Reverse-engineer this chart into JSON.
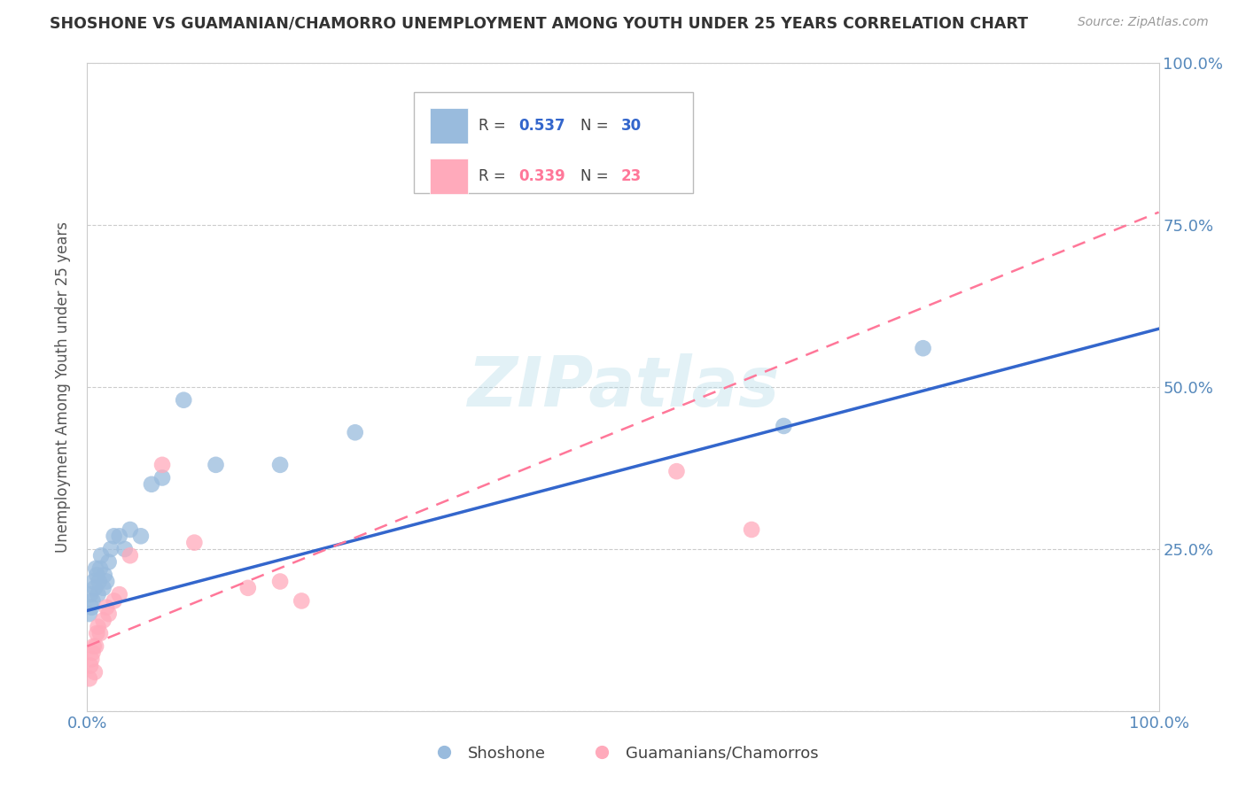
{
  "title": "SHOSHONE VS GUAMANIAN/CHAMORRO UNEMPLOYMENT AMONG YOUTH UNDER 25 YEARS CORRELATION CHART",
  "source": "Source: ZipAtlas.com",
  "ylabel": "Unemployment Among Youth under 25 years",
  "watermark": "ZIPatlas",
  "xlim": [
    0,
    1.0
  ],
  "ylim": [
    0,
    1.0
  ],
  "shoshone_color": "#99BBDD",
  "guamanian_color": "#FFAABB",
  "shoshone_line_color": "#3366CC",
  "guamanian_line_color": "#FF7799",
  "shoshone_label": "Shoshone",
  "guamanian_label": "Guamanians/Chamorros",
  "background_color": "#ffffff",
  "grid_color": "#cccccc",
  "shoshone_x": [
    0.002,
    0.003,
    0.004,
    0.005,
    0.006,
    0.007,
    0.008,
    0.009,
    0.01,
    0.011,
    0.012,
    0.013,
    0.015,
    0.016,
    0.018,
    0.02,
    0.022,
    0.025,
    0.03,
    0.035,
    0.04,
    0.05,
    0.06,
    0.07,
    0.09,
    0.12,
    0.18,
    0.25,
    0.65,
    0.78
  ],
  "shoshone_y": [
    0.15,
    0.18,
    0.16,
    0.17,
    0.2,
    0.19,
    0.22,
    0.21,
    0.18,
    0.2,
    0.22,
    0.24,
    0.19,
    0.21,
    0.2,
    0.23,
    0.25,
    0.27,
    0.27,
    0.25,
    0.28,
    0.27,
    0.35,
    0.36,
    0.48,
    0.38,
    0.38,
    0.43,
    0.44,
    0.56
  ],
  "guamanian_x": [
    0.002,
    0.003,
    0.004,
    0.005,
    0.006,
    0.007,
    0.008,
    0.009,
    0.01,
    0.012,
    0.015,
    0.018,
    0.02,
    0.025,
    0.03,
    0.04,
    0.07,
    0.1,
    0.15,
    0.18,
    0.2,
    0.55,
    0.62
  ],
  "guamanian_y": [
    0.05,
    0.07,
    0.08,
    0.09,
    0.1,
    0.06,
    0.1,
    0.12,
    0.13,
    0.12,
    0.14,
    0.16,
    0.15,
    0.17,
    0.18,
    0.24,
    0.38,
    0.26,
    0.19,
    0.2,
    0.17,
    0.37,
    0.28
  ],
  "shoshone_line_x0": 0.0,
  "shoshone_line_y0": 0.155,
  "shoshone_line_x1": 1.0,
  "shoshone_line_y1": 0.59,
  "guamanian_line_x0": 0.0,
  "guamanian_line_y0": 0.1,
  "guamanian_line_x1": 1.0,
  "guamanian_line_y1": 0.77
}
